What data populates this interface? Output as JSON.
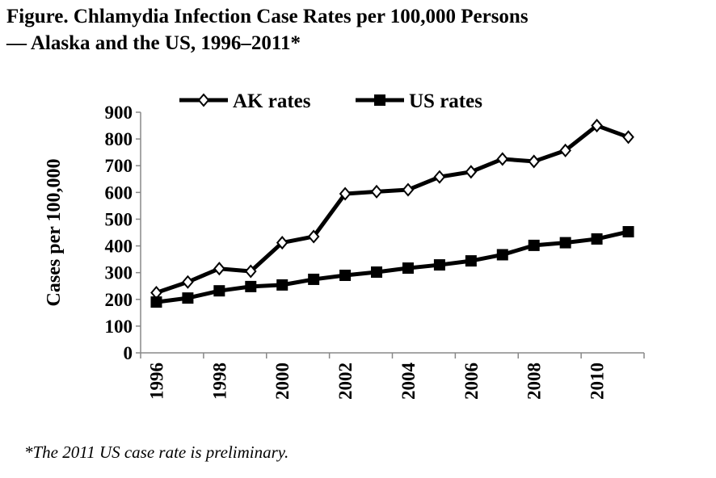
{
  "chart_data": {
    "type": "line",
    "title": "Figure. Chlamydia Infection Case Rates per 100,000 Persons",
    "subtitle": "— Alaska and the US, 1996–2011*",
    "ylabel": "Cases per 100,000",
    "xlabel": "",
    "ylim": [
      0,
      900
    ],
    "yticks": [
      "0",
      "100",
      "200",
      "300",
      "400",
      "500",
      "600",
      "700",
      "800",
      "900"
    ],
    "x": [
      1996,
      1997,
      1998,
      1999,
      2000,
      2001,
      2002,
      2003,
      2004,
      2005,
      2006,
      2007,
      2008,
      2009,
      2010,
      2011
    ],
    "xticklabels": [
      "1996",
      "1998",
      "2000",
      "2002",
      "2004",
      "2006",
      "2008",
      "2010"
    ],
    "legend_position": "top",
    "series": [
      {
        "name": "AK rates",
        "marker": "diamond-open",
        "values": [
          225,
          265,
          315,
          305,
          412,
          435,
          595,
          603,
          610,
          658,
          677,
          725,
          716,
          757,
          850,
          807
        ]
      },
      {
        "name": "US rates",
        "marker": "square-filled",
        "values": [
          190,
          205,
          232,
          248,
          254,
          275,
          290,
          302,
          317,
          329,
          344,
          367,
          402,
          412,
          426,
          453
        ]
      }
    ],
    "footnote": "*The 2011 US case rate is preliminary."
  }
}
